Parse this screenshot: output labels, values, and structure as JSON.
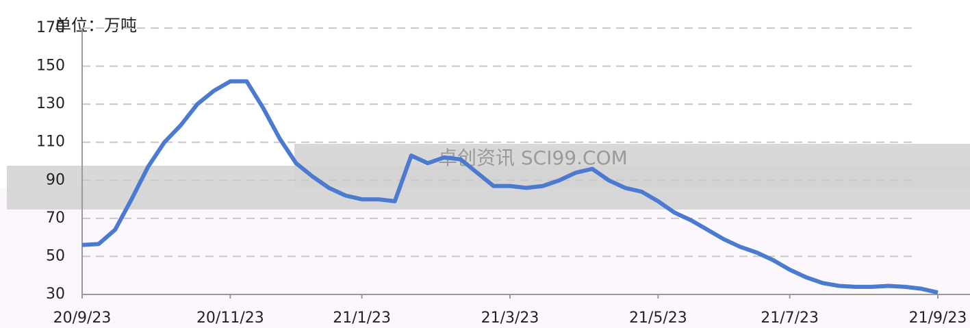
{
  "chart_data": {
    "type": "line",
    "y_label": "单位：万吨",
    "watermark": "卓创资讯 SCI99.COM",
    "categories": [
      "20/9/23",
      null,
      null,
      null,
      null,
      null,
      null,
      null,
      null,
      "20/11/23",
      null,
      null,
      null,
      null,
      null,
      null,
      null,
      "21/1/23",
      null,
      null,
      null,
      null,
      null,
      null,
      null,
      null,
      "21/3/23",
      null,
      null,
      null,
      null,
      null,
      null,
      null,
      null,
      "21/5/23",
      null,
      null,
      null,
      null,
      null,
      null,
      null,
      "21/7/23",
      null,
      null,
      null,
      null,
      null,
      null,
      null,
      null,
      "21/9/23"
    ],
    "series": [
      {
        "name": null,
        "color": "#4a7bd0",
        "values": [
          56,
          56.5,
          64,
          80,
          97,
          110,
          119,
          130,
          137,
          142,
          142,
          128,
          112,
          99,
          92,
          86,
          82,
          80,
          80,
          79,
          103,
          99,
          102,
          101,
          94,
          87,
          87,
          86,
          87,
          90,
          94,
          96,
          90,
          86,
          84,
          79,
          73,
          69,
          64,
          59,
          55,
          52,
          48,
          43,
          39,
          36,
          34.5,
          34,
          34,
          34.5,
          34,
          33,
          31
        ]
      }
    ],
    "ylim": [
      30,
      170
    ],
    "yticks": [
      30,
      50,
      70,
      90,
      110,
      130,
      150,
      170
    ],
    "grid": true
  }
}
